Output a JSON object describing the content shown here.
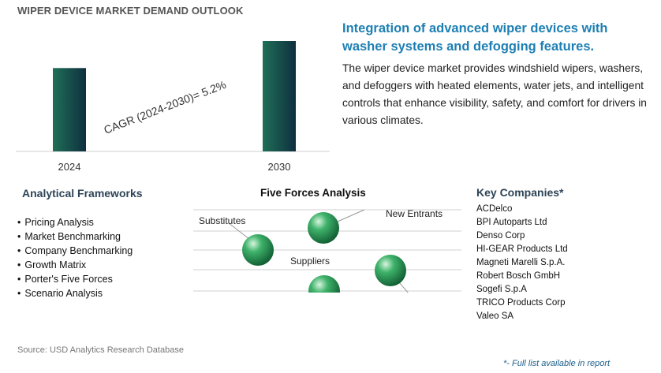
{
  "header": {
    "title": "WIPER DEVICE MARKET DEMAND OUTLOOK"
  },
  "chart_data": {
    "type": "bar",
    "categories": [
      "2024",
      "2030"
    ],
    "values": [
      0.755,
      1.0
    ],
    "annotation": "CAGR (2024-2030)=   5.2%",
    "bar_gradient": [
      "#1f6f57",
      "#0f2f3f"
    ]
  },
  "insight": {
    "headline": "Integration of advanced wiper devices with washer systems and defogging features.",
    "description": "The wiper device market provides windshield wipers, washers, and defoggers with heated elements, water jets, and intelligent controls that enhance visibility, safety, and comfort for drivers in various climates."
  },
  "frameworks": {
    "title": "Analytical Frameworks",
    "items": [
      "Pricing Analysis",
      "Market Benchmarking",
      "Company Benchmarking",
      "Growth Matrix",
      "Porter's Five Forces",
      "Scenario Analysis"
    ]
  },
  "five_forces": {
    "title": "Five Forces Analysis",
    "labels": {
      "substitutes": "Substitutes",
      "new_entrants": "New Entrants",
      "suppliers": "Suppliers"
    },
    "sphere_color": "#2e9e5e"
  },
  "companies": {
    "title": "Key Companies*",
    "items": [
      "ACDelco",
      "BPI Autoparts Ltd",
      "Denso Corp",
      "HI-GEAR Products Ltd",
      "Magneti Marelli S.p.A.",
      "Robert Bosch GmbH",
      "Sogefi S.p.A",
      "TRICO Products Corp",
      "Valeo SA"
    ]
  },
  "footer": {
    "source": "Source: USD Analytics Research Database",
    "full_list": "*- Full list available in report"
  }
}
